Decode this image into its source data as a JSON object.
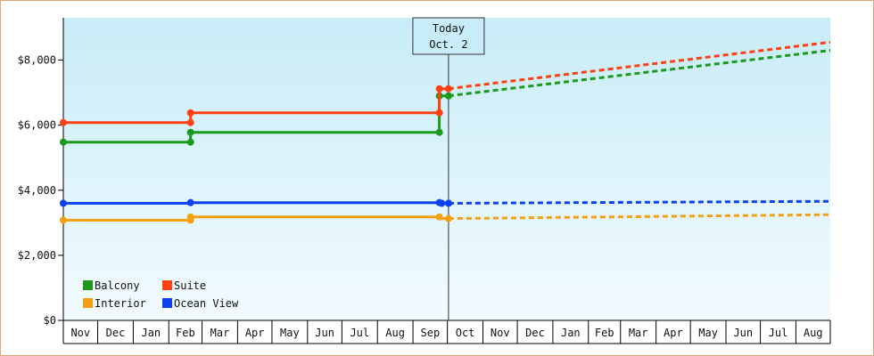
{
  "chart_data": {
    "type": "line",
    "title": "",
    "xlabel": "",
    "ylabel": "",
    "ylim": [
      0,
      9300
    ],
    "y_ticks": [
      0,
      2000,
      4000,
      6000,
      8000
    ],
    "y_tick_labels": [
      "$0",
      "$2,000",
      "$4,000",
      "$6,000",
      "$8,000"
    ],
    "x_months": [
      "Nov",
      "Dec",
      "Jan",
      "Feb",
      "Mar",
      "Apr",
      "May",
      "Jun",
      "Jul",
      "Aug",
      "Sep",
      "Oct",
      "Nov",
      "Dec",
      "Jan",
      "Feb",
      "Mar",
      "Apr",
      "May",
      "Jun",
      "Jul",
      "Aug"
    ],
    "x_range": [
      "2015-11-01",
      "2017-08-31"
    ],
    "today": {
      "line1": "Today",
      "line2": "Oct. 2",
      "date": "2016-10-02"
    },
    "grid": false,
    "legend_position": "bottom-left",
    "colors": {
      "background_top": "#c8ecf8",
      "background_bottom": "#f2fbfe",
      "border": "#e0a878"
    },
    "series": [
      {
        "name": "Balcony",
        "color": "#1a9a1a",
        "historical": [
          [
            "2015-11-01",
            5480
          ],
          [
            "2016-02-20",
            5480
          ],
          [
            "2016-02-20",
            5780
          ],
          [
            "2016-09-24",
            5780
          ],
          [
            "2016-09-24",
            6900
          ],
          [
            "2016-10-02",
            6900
          ]
        ],
        "markers": [
          [
            "2015-11-01",
            5480
          ],
          [
            "2016-02-20",
            5480
          ],
          [
            "2016-02-20",
            5780
          ],
          [
            "2016-09-24",
            5780
          ],
          [
            "2016-09-24",
            6900
          ],
          [
            "2016-10-02",
            6900
          ]
        ],
        "forecast": [
          [
            "2016-10-02",
            6900
          ],
          [
            "2017-08-31",
            8300
          ]
        ]
      },
      {
        "name": "Suite",
        "color": "#ff4010",
        "historical": [
          [
            "2015-11-01",
            6080
          ],
          [
            "2016-02-20",
            6080
          ],
          [
            "2016-02-20",
            6380
          ],
          [
            "2016-09-24",
            6380
          ],
          [
            "2016-09-24",
            7120
          ],
          [
            "2016-10-02",
            7120
          ]
        ],
        "markers": [
          [
            "2015-11-01",
            6080
          ],
          [
            "2016-02-20",
            6080
          ],
          [
            "2016-02-20",
            6380
          ],
          [
            "2016-09-24",
            6380
          ],
          [
            "2016-09-24",
            7120
          ],
          [
            "2016-10-02",
            7120
          ]
        ],
        "forecast": [
          [
            "2016-10-02",
            7120
          ],
          [
            "2017-08-31",
            8550
          ]
        ]
      },
      {
        "name": "Interior",
        "color": "#f5a010",
        "historical": [
          [
            "2015-11-01",
            3080
          ],
          [
            "2016-02-20",
            3080
          ],
          [
            "2016-02-20",
            3180
          ],
          [
            "2016-09-24",
            3180
          ],
          [
            "2016-09-24",
            3130
          ],
          [
            "2016-10-02",
            3130
          ]
        ],
        "markers": [
          [
            "2015-11-01",
            3080
          ],
          [
            "2016-02-20",
            3080
          ],
          [
            "2016-02-20",
            3180
          ],
          [
            "2016-09-24",
            3180
          ],
          [
            "2016-10-02",
            3130
          ]
        ],
        "forecast": [
          [
            "2016-10-02",
            3130
          ],
          [
            "2017-08-31",
            3250
          ]
        ]
      },
      {
        "name": "Ocean View",
        "color": "#0a40f0",
        "historical": [
          [
            "2015-11-01",
            3600
          ],
          [
            "2016-02-20",
            3600
          ],
          [
            "2016-02-20",
            3620
          ],
          [
            "2016-09-24",
            3620
          ],
          [
            "2016-09-24",
            3600
          ],
          [
            "2016-10-02",
            3600
          ]
        ],
        "markers": [
          [
            "2015-11-01",
            3600
          ],
          [
            "2016-02-20",
            3620
          ],
          [
            "2016-09-24",
            3620
          ],
          [
            "2016-09-26",
            3600
          ],
          [
            "2016-10-02",
            3600
          ]
        ],
        "forecast": [
          [
            "2016-10-02",
            3600
          ],
          [
            "2017-08-31",
            3660
          ]
        ]
      }
    ]
  }
}
